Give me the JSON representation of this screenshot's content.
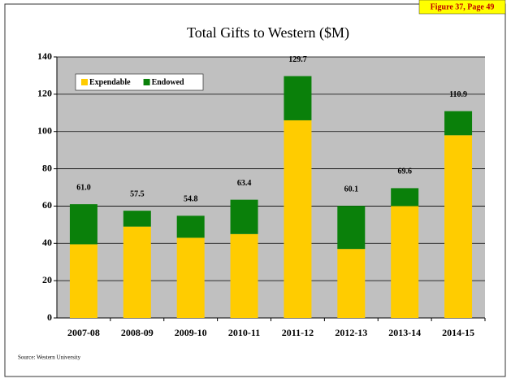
{
  "chart_data": {
    "type": "stacked_bar",
    "title": "Total Gifts to Western ($M)",
    "figure_tag": "Figure 37, Page 49",
    "source": "Source:  Western University",
    "categories": [
      "2007-08",
      "2008-09",
      "2009-10",
      "2010-11",
      "2011-12",
      "2012-13",
      "2013-14",
      "2014-15"
    ],
    "series": [
      {
        "name": "Expendable",
        "color": "#ffcc00",
        "values": [
          39.5,
          49,
          43,
          45,
          106,
          37,
          60,
          98
        ]
      },
      {
        "name": "Endowed",
        "color": "#0a800a",
        "values": [
          21.5,
          8.5,
          11.8,
          18.4,
          23.7,
          23.1,
          9.6,
          12.9
        ]
      }
    ],
    "totals": [
      61.0,
      57.5,
      54.8,
      63.4,
      129.7,
      60.1,
      69.6,
      110.9
    ],
    "value_labels": [
      "61.0",
      "57.5",
      "54.8",
      "63.4",
      "129.7",
      "60.1",
      "69.6",
      "110.9"
    ],
    "ylim": [
      0,
      140
    ],
    "yticks": [
      0,
      20,
      40,
      60,
      80,
      100,
      120,
      140
    ],
    "grid": true,
    "legend": "top-left"
  }
}
